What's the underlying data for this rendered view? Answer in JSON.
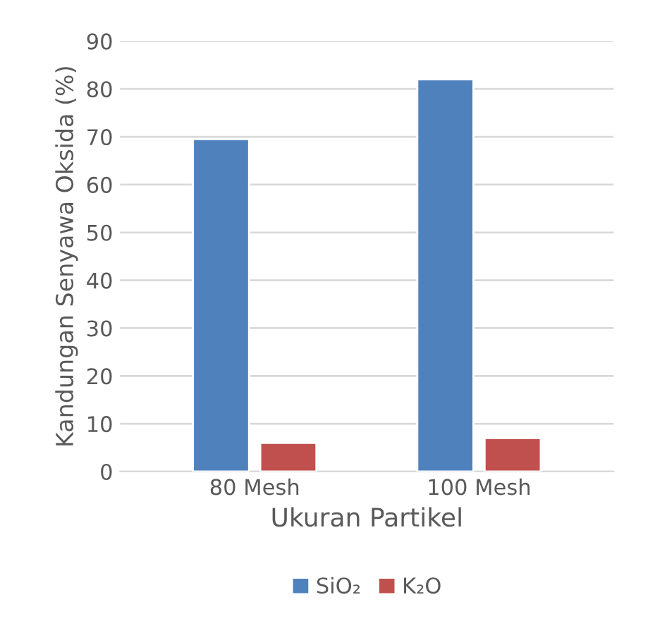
{
  "chart_data": {
    "type": "bar",
    "xlabel": "Ukuran Partikel",
    "ylabel": "Kandungan Senyawa Oksida (%)",
    "categories": [
      "80 Mesh",
      "100 Mesh"
    ],
    "series": [
      {
        "name": "SiO₂",
        "color": "#4f81bd",
        "values": [
          69.5,
          82
        ]
      },
      {
        "name": "K₂O",
        "color": "#c0504d",
        "values": [
          6,
          7
        ]
      }
    ],
    "ylim": [
      0,
      90
    ],
    "yticks": [
      0,
      10,
      20,
      30,
      40,
      50,
      60,
      70,
      80,
      90
    ],
    "grid": "y",
    "legend": "bottom"
  }
}
